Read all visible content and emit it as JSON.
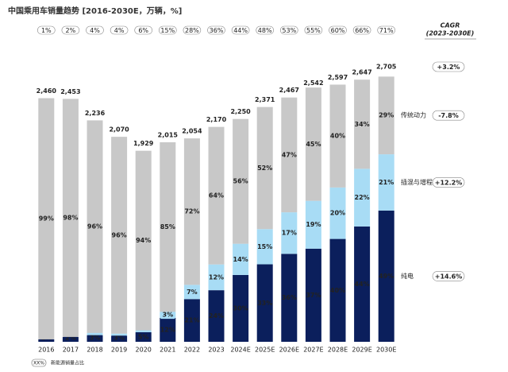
{
  "chart_data": {
    "type": "stacked_bar",
    "title": "中国乘用车销量趋势 [2016-2030E，万辆，%]",
    "categories": [
      "2016",
      "2017",
      "2018",
      "2019",
      "2020",
      "2021",
      "2022",
      "2023",
      "2024E",
      "2025E",
      "2026E",
      "2027E",
      "2028E",
      "2029E",
      "2030E"
    ],
    "share": {
      "values": [
        1,
        2,
        4,
        4,
        6,
        15,
        28,
        36,
        44,
        48,
        53,
        55,
        60,
        66,
        71
      ],
      "value_labels": [
        "1%",
        "2%",
        "4%",
        "4%",
        "6%",
        "15%",
        "28%",
        "36%",
        "44%",
        "48%",
        "53%",
        "55%",
        "60%",
        "66%",
        "71%"
      ]
    },
    "totals": {
      "values": [
        2460,
        2453,
        2236,
        2070,
        1929,
        2015,
        2054,
        2170,
        2250,
        2371,
        2467,
        2542,
        2597,
        2647,
        2705
      ],
      "value_labels": [
        "2,460",
        "2,453",
        "2,236",
        "2,070",
        "1,929",
        "2,015",
        "2,054",
        "2,170",
        "2,250",
        "2,371",
        "2,467",
        "2,542",
        "2,597",
        "2,647",
        "2,705"
      ]
    },
    "cagr_title": "CAGR",
    "cagr_subtitle": "(2023-2030E)",
    "total_cagr": "+3.2%",
    "series": [
      {
        "name": "纯电",
        "color": "#0b1f5c",
        "cagr": "+14.6%",
        "values": [
          1,
          2,
          3,
          3,
          5,
          12,
          21,
          24,
          30,
          33,
          36,
          37,
          40,
          44,
          49
        ],
        "value_labels": [
          "1%",
          "2%",
          "3%",
          "3%",
          "5%",
          "12%",
          "21%",
          "24%",
          "30%",
          "33%",
          "36%",
          "37%",
          "40%",
          "44%",
          "49%"
        ]
      },
      {
        "name": "插混与增程",
        "color": "#a8dcf5",
        "cagr": "+12.2%",
        "values": [
          0,
          0,
          1,
          1,
          1,
          3,
          7,
          12,
          14,
          15,
          17,
          19,
          20,
          22,
          21
        ],
        "value_labels": [
          "0%",
          "0%",
          "1%",
          "1%",
          "1%",
          "3%",
          "7%",
          "12%",
          "14%",
          "15%",
          "17%",
          "19%",
          "20%",
          "22%",
          "21%"
        ]
      },
      {
        "name": "传统动力",
        "color": "#c8c8c8",
        "cagr": "-7.8%",
        "values": [
          99,
          98,
          96,
          96,
          94,
          85,
          72,
          64,
          56,
          52,
          47,
          45,
          40,
          34,
          29
        ],
        "value_labels": [
          "99%",
          "98%",
          "96%",
          "96%",
          "94%",
          "85%",
          "72%",
          "64%",
          "56%",
          "52%",
          "47%",
          "45%",
          "40%",
          "34%",
          "29%"
        ]
      }
    ],
    "footnote_box": "XX%",
    "footnote": "新能源销量占比"
  }
}
